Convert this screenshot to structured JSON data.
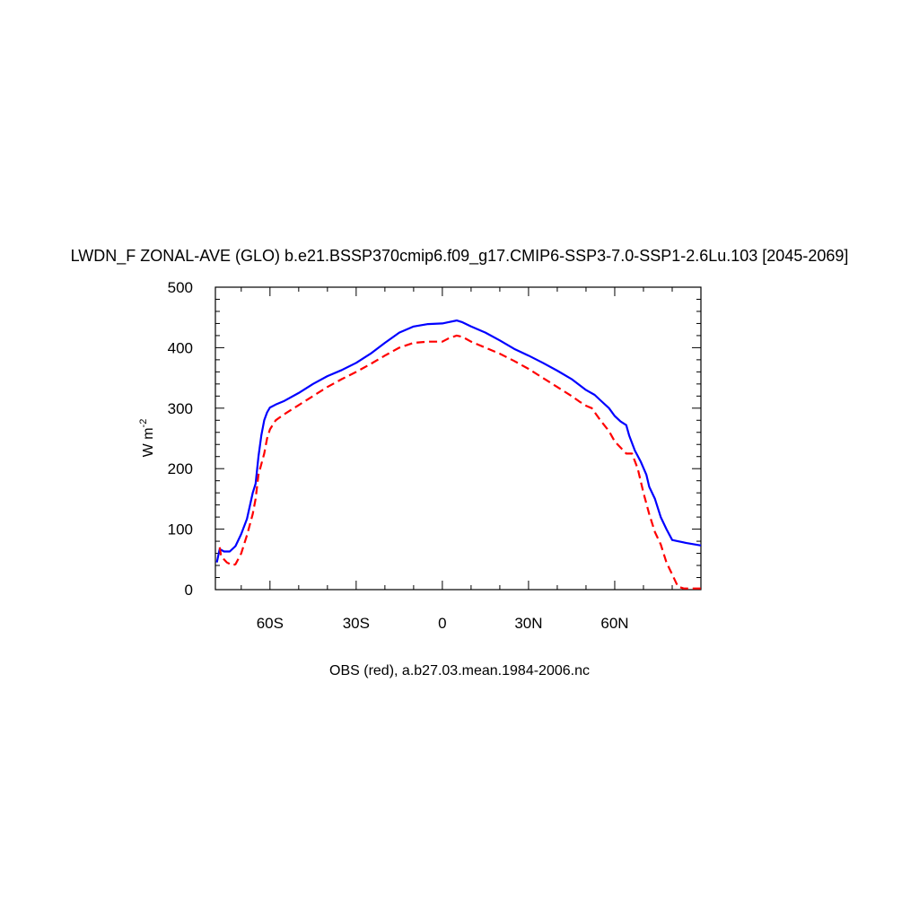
{
  "chart_data": {
    "type": "line",
    "title": "LWDN_F ZONAL-AVE (GLO) b.e21.BSSP370cmip6.f09_g17.CMIP6-SSP3-7.0-SSP1-2.6Lu.103 [2045-2069]",
    "ylabel": {
      "base": "W m",
      "sup": "-2"
    },
    "footer": "OBS (red), a.b27.03.mean.1984-2006.nc",
    "xlim": [
      -79,
      90
    ],
    "ylim": [
      0,
      500
    ],
    "x_ticks": [
      {
        "value": -60,
        "label": "60S"
      },
      {
        "value": -30,
        "label": "30S"
      },
      {
        "value": 0,
        "label": "0"
      },
      {
        "value": 30,
        "label": "30N"
      },
      {
        "value": 60,
        "label": "60N"
      }
    ],
    "y_ticks": [
      {
        "value": 0,
        "label": "0"
      },
      {
        "value": 100,
        "label": "100"
      },
      {
        "value": 200,
        "label": "200"
      },
      {
        "value": 300,
        "label": "300"
      },
      {
        "value": 400,
        "label": "400"
      },
      {
        "value": 500,
        "label": "500"
      }
    ],
    "grid": false,
    "legend": "none",
    "series": [
      {
        "color": "#0000ff",
        "style": "solid",
        "points": [
          [
            -78.5,
            45
          ],
          [
            -77.5,
            67
          ],
          [
            -76,
            63
          ],
          [
            -74,
            63
          ],
          [
            -72,
            72
          ],
          [
            -70,
            92
          ],
          [
            -68,
            117
          ],
          [
            -66,
            160
          ],
          [
            -65,
            175
          ],
          [
            -64,
            220
          ],
          [
            -63,
            255
          ],
          [
            -62,
            280
          ],
          [
            -61,
            293
          ],
          [
            -60,
            301
          ],
          [
            -58,
            306
          ],
          [
            -55,
            312
          ],
          [
            -50,
            325
          ],
          [
            -45,
            340
          ],
          [
            -40,
            353
          ],
          [
            -35,
            363
          ],
          [
            -30,
            375
          ],
          [
            -25,
            390
          ],
          [
            -20,
            408
          ],
          [
            -15,
            425
          ],
          [
            -10,
            435
          ],
          [
            -5,
            439
          ],
          [
            0,
            440
          ],
          [
            2,
            442
          ],
          [
            5,
            445
          ],
          [
            7,
            442
          ],
          [
            10,
            435
          ],
          [
            15,
            425
          ],
          [
            20,
            412
          ],
          [
            25,
            398
          ],
          [
            30,
            387
          ],
          [
            35,
            375
          ],
          [
            40,
            362
          ],
          [
            45,
            348
          ],
          [
            50,
            330
          ],
          [
            53,
            322
          ],
          [
            55,
            313
          ],
          [
            58,
            300
          ],
          [
            60,
            287
          ],
          [
            62,
            278
          ],
          [
            64,
            272
          ],
          [
            65,
            255
          ],
          [
            67,
            230
          ],
          [
            69,
            212
          ],
          [
            71,
            190
          ],
          [
            72,
            170
          ],
          [
            74,
            150
          ],
          [
            76,
            120
          ],
          [
            78,
            100
          ],
          [
            80,
            82
          ],
          [
            82,
            80
          ],
          [
            85,
            77
          ],
          [
            90,
            73
          ]
        ]
      },
      {
        "color": "#ff0000",
        "style": "dashed",
        "points": [
          [
            -77.5,
            70
          ],
          [
            -77,
            55
          ],
          [
            -75,
            45
          ],
          [
            -73,
            40
          ],
          [
            -72,
            42
          ],
          [
            -70,
            60
          ],
          [
            -68,
            90
          ],
          [
            -66,
            125
          ],
          [
            -65,
            150
          ],
          [
            -64,
            190
          ],
          [
            -62,
            225
          ],
          [
            -61,
            250
          ],
          [
            -60,
            265
          ],
          [
            -58,
            280
          ],
          [
            -55,
            290
          ],
          [
            -50,
            305
          ],
          [
            -45,
            320
          ],
          [
            -40,
            335
          ],
          [
            -35,
            348
          ],
          [
            -30,
            360
          ],
          [
            -25,
            373
          ],
          [
            -20,
            387
          ],
          [
            -15,
            400
          ],
          [
            -10,
            408
          ],
          [
            -5,
            410
          ],
          [
            0,
            410
          ],
          [
            2,
            415
          ],
          [
            5,
            420
          ],
          [
            7,
            418
          ],
          [
            10,
            410
          ],
          [
            15,
            400
          ],
          [
            20,
            390
          ],
          [
            25,
            378
          ],
          [
            30,
            365
          ],
          [
            35,
            350
          ],
          [
            40,
            335
          ],
          [
            45,
            320
          ],
          [
            48,
            310
          ],
          [
            50,
            304
          ],
          [
            52,
            300
          ],
          [
            55,
            280
          ],
          [
            58,
            262
          ],
          [
            60,
            245
          ],
          [
            62,
            235
          ],
          [
            64,
            225
          ],
          [
            66,
            225
          ],
          [
            68,
            200
          ],
          [
            70,
            160
          ],
          [
            72,
            125
          ],
          [
            74,
            95
          ],
          [
            76,
            75
          ],
          [
            78,
            45
          ],
          [
            80,
            25
          ],
          [
            82,
            5
          ],
          [
            84,
            2
          ],
          [
            90,
            2
          ]
        ]
      }
    ]
  }
}
